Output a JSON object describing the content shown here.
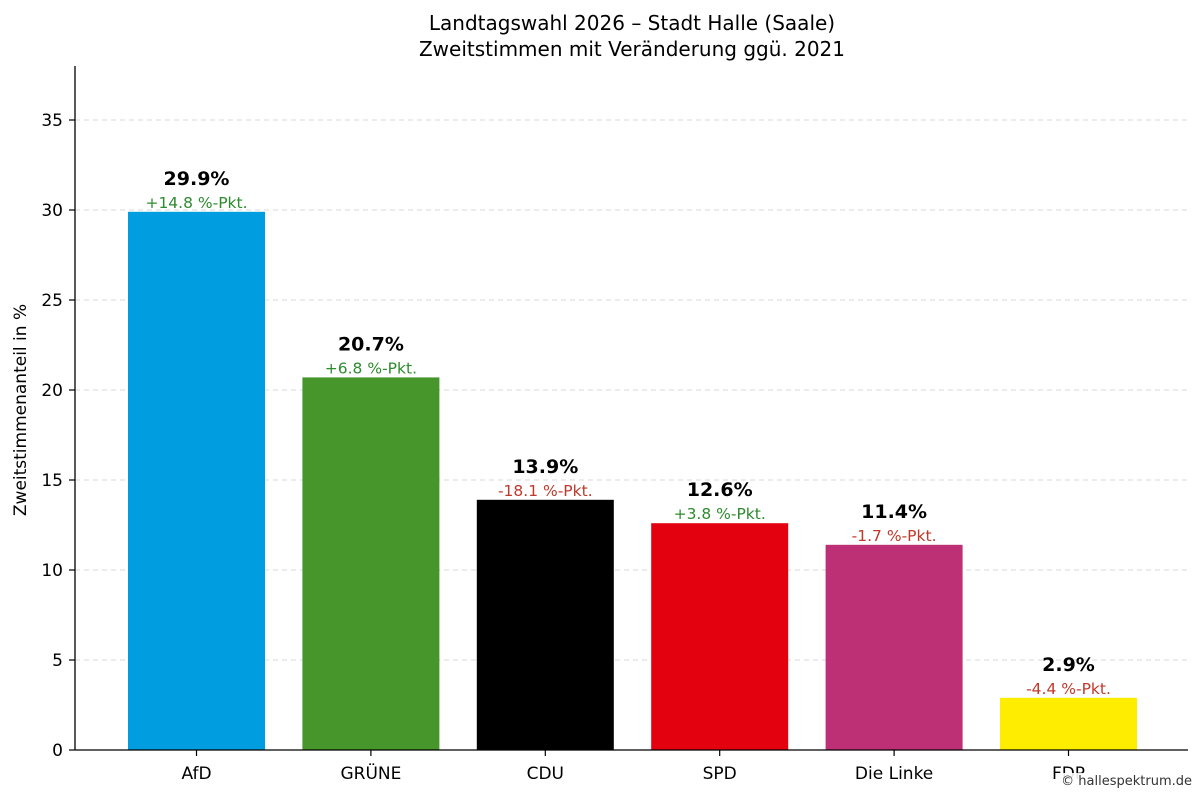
{
  "chart_data": {
    "type": "bar",
    "title": "Landtagswahl 2026 – Stadt Halle (Saale)",
    "subtitle": "Zweitstimmen mit Veränderung ggü. 2021",
    "ylabel": "Zweitstimmenanteil in %",
    "xlabel": "",
    "ylim": [
      0,
      38
    ],
    "yticks": [
      0,
      5,
      10,
      15,
      20,
      25,
      30,
      35
    ],
    "grid": true,
    "categories": [
      "AfD",
      "GRÜNE",
      "CDU",
      "SPD",
      "Die Linke",
      "FDP"
    ],
    "values": [
      29.9,
      20.7,
      13.9,
      12.6,
      11.4,
      2.9
    ],
    "value_labels": [
      "29.9%",
      "20.7%",
      "13.9%",
      "12.6%",
      "11.4%",
      "2.9%"
    ],
    "changes": [
      14.8,
      6.8,
      -18.1,
      3.8,
      -1.7,
      -4.4
    ],
    "change_labels": [
      "+14.8 %-Pkt.",
      "+6.8 %-Pkt.",
      "-18.1 %-Pkt.",
      "+3.8 %-Pkt.",
      "-1.7 %-Pkt.",
      "-4.4 %-Pkt."
    ],
    "colors": [
      "#009ee0",
      "#46962b",
      "#000000",
      "#e3000f",
      "#be3075",
      "#ffed00"
    ],
    "positive_color": "#2e8b2e",
    "negative_color": "#c0392b"
  },
  "credit": "© hallespektrum.de"
}
